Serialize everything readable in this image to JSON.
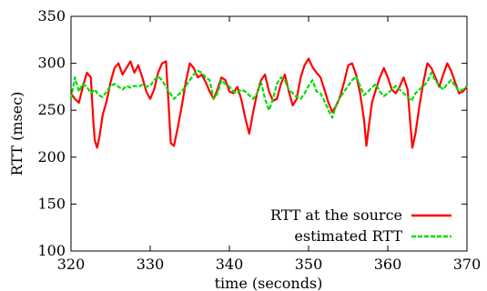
{
  "chart_data": {
    "type": "line",
    "title": "",
    "xlabel": "time (seconds)",
    "ylabel": "RTT (msec)",
    "xlim": [
      320,
      370
    ],
    "ylim": [
      100,
      350
    ],
    "xticks": [
      320,
      330,
      340,
      350,
      360,
      370
    ],
    "yticks": [
      100,
      150,
      200,
      250,
      300,
      350
    ],
    "grid": false,
    "legend_position": "bottom-right",
    "series": [
      {
        "name": "RTT at the source",
        "color": "#ff0000",
        "style": "solid",
        "x": [
          320.0,
          320.5,
          321.0,
          321.5,
          322.0,
          322.5,
          322.8,
          323.0,
          323.3,
          323.6,
          324.0,
          324.5,
          325.0,
          325.5,
          326.0,
          326.5,
          327.0,
          327.5,
          328.0,
          328.5,
          329.0,
          329.5,
          330.0,
          330.5,
          331.0,
          331.5,
          332.0,
          332.3,
          332.6,
          333.0,
          333.5,
          334.0,
          334.5,
          335.0,
          335.5,
          336.0,
          336.5,
          337.0,
          337.5,
          338.0,
          338.5,
          339.0,
          339.5,
          340.0,
          340.5,
          341.0,
          341.5,
          342.0,
          342.5,
          343.0,
          343.5,
          344.0,
          344.5,
          345.0,
          345.5,
          346.0,
          346.5,
          347.0,
          347.5,
          348.0,
          348.5,
          349.0,
          349.5,
          350.0,
          350.5,
          351.0,
          351.5,
          352.0,
          352.5,
          353.0,
          353.5,
          354.0,
          354.5,
          355.0,
          355.5,
          356.0,
          356.5,
          357.0,
          357.3,
          357.6,
          358.0,
          358.5,
          359.0,
          359.5,
          360.0,
          360.5,
          361.0,
          361.5,
          362.0,
          362.5,
          362.8,
          363.1,
          363.5,
          364.0,
          364.5,
          365.0,
          365.5,
          366.0,
          366.5,
          367.0,
          367.5,
          368.0,
          368.5,
          369.0,
          369.5,
          370.0
        ],
        "y": [
          268,
          262,
          258,
          275,
          290,
          285,
          240,
          218,
          210,
          222,
          245,
          260,
          280,
          295,
          300,
          288,
          295,
          302,
          290,
          298,
          285,
          270,
          262,
          272,
          290,
          300,
          302,
          260,
          215,
          212,
          232,
          255,
          280,
          300,
          295,
          285,
          288,
          280,
          270,
          262,
          272,
          285,
          282,
          270,
          268,
          275,
          262,
          242,
          225,
          248,
          268,
          282,
          288,
          270,
          260,
          262,
          278,
          288,
          270,
          255,
          262,
          285,
          298,
          305,
          296,
          290,
          285,
          272,
          258,
          248,
          255,
          265,
          280,
          298,
          300,
          288,
          268,
          240,
          212,
          232,
          258,
          272,
          285,
          295,
          285,
          272,
          268,
          275,
          285,
          272,
          240,
          210,
          225,
          255,
          280,
          300,
          295,
          285,
          275,
          288,
          300,
          292,
          280,
          268,
          270,
          275
        ]
      },
      {
        "name": "estimated RTT",
        "color": "#00dd00",
        "style": "dashed",
        "x": [
          320.0,
          320.5,
          321.0,
          321.5,
          322.0,
          322.5,
          323.0,
          323.5,
          324.0,
          324.5,
          325.0,
          325.5,
          326.0,
          326.5,
          327.0,
          327.5,
          328.0,
          328.5,
          329.0,
          329.5,
          330.0,
          330.5,
          331.0,
          331.5,
          332.0,
          332.5,
          333.0,
          333.5,
          334.0,
          334.5,
          335.0,
          335.5,
          336.0,
          336.5,
          337.0,
          337.5,
          338.0,
          338.5,
          339.0,
          339.5,
          340.0,
          340.5,
          341.0,
          341.5,
          342.0,
          342.5,
          343.0,
          343.5,
          344.0,
          344.5,
          345.0,
          345.5,
          346.0,
          346.5,
          347.0,
          347.5,
          348.0,
          348.5,
          349.0,
          349.5,
          350.0,
          350.5,
          351.0,
          351.5,
          352.0,
          352.5,
          353.0,
          353.5,
          354.0,
          354.5,
          355.0,
          355.5,
          356.0,
          356.5,
          357.0,
          357.5,
          358.0,
          358.5,
          359.0,
          359.5,
          360.0,
          360.5,
          361.0,
          361.5,
          362.0,
          362.5,
          363.0,
          363.5,
          364.0,
          364.5,
          365.0,
          365.5,
          366.0,
          366.5,
          367.0,
          367.5,
          368.0,
          368.5,
          369.0,
          369.5,
          370.0
        ],
        "y": [
          262,
          285,
          270,
          278,
          275,
          268,
          272,
          266,
          264,
          270,
          276,
          278,
          275,
          272,
          276,
          274,
          276,
          275,
          277,
          275,
          276,
          282,
          286,
          282,
          275,
          268,
          262,
          266,
          270,
          276,
          282,
          288,
          292,
          290,
          285,
          282,
          262,
          268,
          282,
          278,
          275,
          270,
          268,
          272,
          270,
          266,
          262,
          268,
          280,
          262,
          250,
          262,
          278,
          285,
          282,
          272,
          268,
          264,
          262,
          268,
          276,
          282,
          270,
          268,
          260,
          250,
          242,
          256,
          264,
          270,
          276,
          282,
          286,
          276,
          266,
          270,
          274,
          278,
          270,
          265,
          268,
          272,
          276,
          272,
          268,
          264,
          260,
          268,
          272,
          276,
          280,
          290,
          282,
          276,
          272,
          278,
          282,
          276,
          270,
          272,
          276
        ]
      }
    ]
  }
}
